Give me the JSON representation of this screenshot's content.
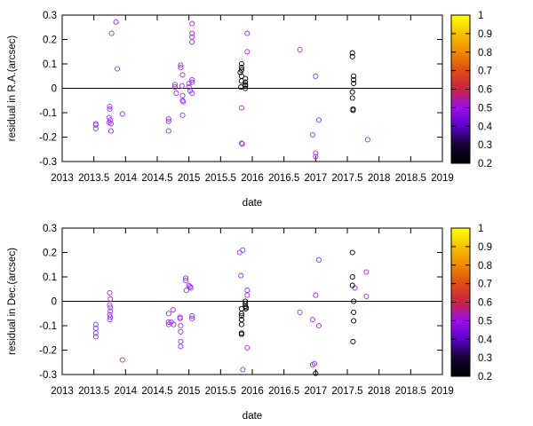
{
  "colorbar": {
    "ticks": [
      "1",
      "0.9",
      "0.8",
      "0.7",
      "0.6",
      "0.5",
      "0.4",
      "0.3",
      "0.2"
    ],
    "stops": [
      {
        "v": 0.2,
        "color": "#000000"
      },
      {
        "v": 0.3,
        "color": "#1a0033"
      },
      {
        "v": 0.4,
        "color": "#5a00cc"
      },
      {
        "v": 0.5,
        "color": "#9a10ee"
      },
      {
        "v": 0.6,
        "color": "#cc2244"
      },
      {
        "v": 0.7,
        "color": "#e04a10"
      },
      {
        "v": 0.8,
        "color": "#f08a00"
      },
      {
        "v": 0.9,
        "color": "#f8c000"
      },
      {
        "v": 1.0,
        "color": "#ffff00"
      }
    ]
  },
  "colors": {
    "purple": "#9b30ff",
    "black": "#000000"
  },
  "chart_data": [
    {
      "type": "scatter",
      "xlabel": "date",
      "ylabel": "residual in R.A.(arcsec)",
      "xlim": [
        2013,
        2019
      ],
      "ylim": [
        -0.3,
        0.3
      ],
      "xticks": [
        "2013",
        "2013.5",
        "2014",
        "2014.5",
        "2015",
        "2015.5",
        "2016",
        "2016.5",
        "2017",
        "2017.5",
        "2018",
        "2018.5",
        "2019"
      ],
      "yticks": [
        "0.3",
        "0.2",
        "0.1",
        "0",
        "-0.1",
        "-0.2",
        "-0.3"
      ],
      "zero_line": true,
      "series": [
        {
          "color": "purple",
          "points": [
            [
              2013.53,
              -0.145
            ],
            [
              2013.53,
              -0.15
            ],
            [
              2013.53,
              -0.165
            ],
            [
              2013.75,
              -0.075
            ],
            [
              2013.75,
              -0.085
            ],
            [
              2013.74,
              -0.12
            ],
            [
              2013.76,
              -0.13
            ],
            [
              2013.74,
              -0.14
            ],
            [
              2013.77,
              -0.145
            ],
            [
              2013.77,
              -0.175
            ],
            [
              2013.78,
              0.225
            ],
            [
              2013.85,
              0.272
            ],
            [
              2013.87,
              0.08
            ],
            [
              2013.95,
              -0.105
            ],
            [
              2014.68,
              -0.125
            ],
            [
              2014.68,
              -0.135
            ],
            [
              2014.68,
              -0.175
            ],
            [
              2014.78,
              0.015
            ],
            [
              2014.78,
              0.005
            ],
            [
              2014.8,
              -0.02
            ],
            [
              2014.87,
              0.095
            ],
            [
              2014.87,
              0.085
            ],
            [
              2014.9,
              0.055
            ],
            [
              2014.89,
              0.01
            ],
            [
              2014.9,
              -0.03
            ],
            [
              2014.9,
              -0.05
            ],
            [
              2014.91,
              -0.055
            ],
            [
              2014.9,
              -0.11
            ],
            [
              2015.0,
              0.02
            ],
            [
              2015.0,
              0.005
            ],
            [
              2015.02,
              -0.01
            ],
            [
              2015.05,
              0.265
            ],
            [
              2015.05,
              0.225
            ],
            [
              2015.05,
              0.21
            ],
            [
              2015.05,
              0.19
            ],
            [
              2015.05,
              0.035
            ],
            [
              2015.05,
              0.025
            ],
            [
              2015.05,
              -0.02
            ],
            [
              2015.83,
              -0.08
            ],
            [
              2015.83,
              -0.225
            ],
            [
              2015.84,
              -0.228
            ],
            [
              2015.92,
              0.225
            ],
            [
              2015.92,
              0.15
            ],
            [
              2016.75,
              0.158
            ],
            [
              2016.95,
              -0.19
            ],
            [
              2017.0,
              0.05
            ],
            [
              2017.0,
              -0.265
            ],
            [
              2017.0,
              -0.28
            ],
            [
              2017.05,
              -0.13
            ],
            [
              2017.82,
              -0.21
            ]
          ]
        },
        {
          "color": "black",
          "points": [
            [
              2015.83,
              0.1
            ],
            [
              2015.83,
              0.085
            ],
            [
              2015.83,
              0.075
            ],
            [
              2015.81,
              0.065
            ],
            [
              2015.83,
              0.05
            ],
            [
              2015.83,
              0.03
            ],
            [
              2015.82,
              0.005
            ],
            [
              2015.89,
              0.04
            ],
            [
              2015.89,
              0.025
            ],
            [
              2015.89,
              0.015
            ],
            [
              2015.89,
              0.01
            ],
            [
              2015.89,
              0.0
            ],
            [
              2017.58,
              0.145
            ],
            [
              2017.58,
              0.13
            ],
            [
              2017.6,
              0.05
            ],
            [
              2017.6,
              0.035
            ],
            [
              2017.6,
              0.02
            ],
            [
              2017.58,
              -0.015
            ],
            [
              2017.58,
              -0.04
            ],
            [
              2017.59,
              -0.085
            ],
            [
              2017.59,
              -0.09
            ]
          ]
        }
      ]
    },
    {
      "type": "scatter",
      "xlabel": "date",
      "ylabel": "residual in Dec.(arcsec)",
      "xlim": [
        2013,
        2019
      ],
      "ylim": [
        -0.3,
        0.3
      ],
      "xticks": [
        "2013",
        "2013.5",
        "2014",
        "2014.5",
        "2015",
        "2015.5",
        "2016",
        "2016.5",
        "2017",
        "2017.5",
        "2018",
        "2018.5",
        "2019"
      ],
      "yticks": [
        "0.3",
        "0.2",
        "0.1",
        "0",
        "-0.1",
        "-0.2",
        "-0.3"
      ],
      "zero_line": true,
      "series": [
        {
          "color": "purple",
          "points": [
            [
              2013.53,
              -0.095
            ],
            [
              2013.53,
              -0.11
            ],
            [
              2013.53,
              -0.13
            ],
            [
              2013.53,
              -0.145
            ],
            [
              2013.75,
              0.035
            ],
            [
              2013.76,
              0.01
            ],
            [
              2013.75,
              -0.015
            ],
            [
              2013.76,
              -0.025
            ],
            [
              2013.76,
              -0.04
            ],
            [
              2013.75,
              -0.055
            ],
            [
              2013.76,
              -0.065
            ],
            [
              2013.75,
              -0.075
            ],
            [
              2013.95,
              -0.24
            ],
            [
              2014.68,
              -0.05
            ],
            [
              2014.68,
              -0.085
            ],
            [
              2014.68,
              -0.095
            ],
            [
              2014.72,
              -0.085
            ],
            [
              2014.75,
              -0.035
            ],
            [
              2014.76,
              -0.095
            ],
            [
              2014.86,
              -0.065
            ],
            [
              2014.86,
              -0.07
            ],
            [
              2014.87,
              -0.1
            ],
            [
              2014.87,
              -0.125
            ],
            [
              2014.87,
              -0.165
            ],
            [
              2014.87,
              -0.185
            ],
            [
              2014.95,
              0.095
            ],
            [
              2014.95,
              0.085
            ],
            [
              2014.96,
              0.045
            ],
            [
              2015.0,
              0.065
            ],
            [
              2015.02,
              0.06
            ],
            [
              2015.03,
              0.055
            ],
            [
              2015.05,
              -0.06
            ],
            [
              2015.05,
              -0.07
            ],
            [
              2015.8,
              0.2
            ],
            [
              2015.85,
              0.21
            ],
            [
              2015.82,
              0.105
            ],
            [
              2015.85,
              -0.28
            ],
            [
              2015.92,
              0.045
            ],
            [
              2015.92,
              0.025
            ],
            [
              2015.92,
              -0.19
            ],
            [
              2016.75,
              -0.045
            ],
            [
              2016.95,
              -0.075
            ],
            [
              2016.95,
              -0.26
            ],
            [
              2016.98,
              -0.255
            ],
            [
              2017.0,
              0.025
            ],
            [
              2017.05,
              0.17
            ],
            [
              2017.05,
              -0.1
            ],
            [
              2017.62,
              0.055
            ],
            [
              2017.8,
              0.12
            ],
            [
              2017.8,
              0.02
            ]
          ]
        },
        {
          "color": "black",
          "points": [
            [
              2015.83,
              -0.03
            ],
            [
              2015.83,
              -0.05
            ],
            [
              2015.83,
              -0.06
            ],
            [
              2015.83,
              -0.075
            ],
            [
              2015.83,
              -0.095
            ],
            [
              2015.83,
              -0.13
            ],
            [
              2015.83,
              -0.135
            ],
            [
              2015.89,
              0.0
            ],
            [
              2015.89,
              -0.01
            ],
            [
              2015.89,
              -0.02
            ],
            [
              2015.9,
              -0.025
            ],
            [
              2015.9,
              -0.03
            ],
            [
              2017.0,
              -0.295
            ],
            [
              2017.58,
              0.2
            ],
            [
              2017.58,
              0.1
            ],
            [
              2017.58,
              0.065
            ],
            [
              2017.6,
              0.0
            ],
            [
              2017.6,
              -0.045
            ],
            [
              2017.6,
              -0.08
            ],
            [
              2017.59,
              -0.165
            ]
          ]
        }
      ]
    }
  ]
}
